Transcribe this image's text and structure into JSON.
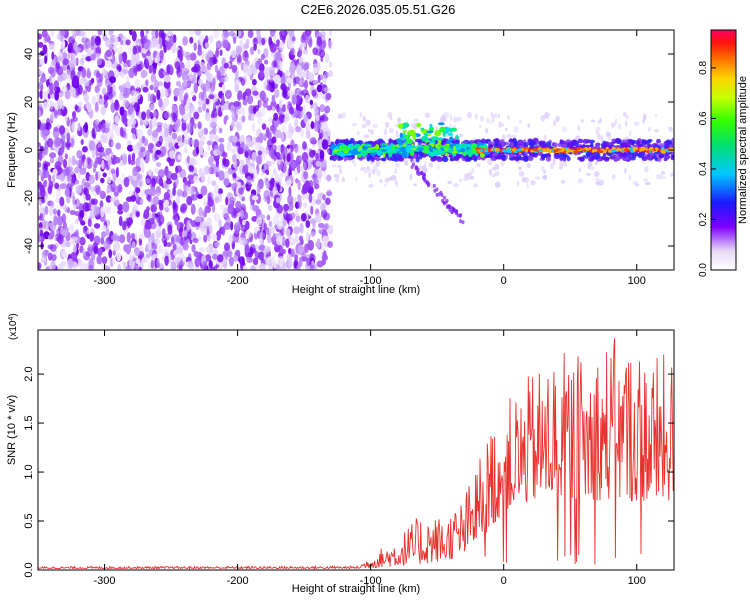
{
  "title": "C2E6.2026.035.05.51.G26",
  "chart_data": [
    {
      "type": "heatmap",
      "name": "spectrogram",
      "xlabel": "Height of straight line (km)",
      "ylabel": "Frequency (Hz)",
      "xlim": [
        -350,
        128
      ],
      "ylim": [
        -50,
        50
      ],
      "x_ticks": [
        -300,
        -200,
        -100,
        0,
        100
      ],
      "x_tick_labels": [
        "-300",
        "-200",
        "-100",
        "0",
        "100"
      ],
      "y_ticks": [
        -40,
        -20,
        0,
        20,
        40
      ],
      "y_tick_labels": [
        "-40",
        "-20",
        "0",
        "20",
        "40"
      ],
      "noise_region_km": [
        -350,
        -130
      ],
      "signal_band_hz": [
        -3,
        3
      ],
      "colorbar": {
        "label": "Normalized spectral amplitude",
        "range": [
          0.0,
          0.95
        ],
        "ticks": [
          0.0,
          0.2,
          0.4,
          0.6,
          0.8
        ],
        "tick_labels": [
          "0.0",
          "0.2",
          "0.4",
          "0.6",
          "0.8"
        ]
      }
    },
    {
      "type": "line",
      "name": "snr",
      "xlabel": "Height of straight line (km)",
      "ylabel": "SNR (10 * v/v)",
      "scale_label": "(x10",
      "scale_exp": "4",
      "scale_close": ")",
      "xlim": [
        -350,
        128
      ],
      "ylim": [
        0,
        24500
      ],
      "x_ticks": [
        -300,
        -200,
        -100,
        0,
        100
      ],
      "x_tick_labels": [
        "-300",
        "-200",
        "-100",
        "0",
        "100"
      ],
      "y_ticks": [
        0,
        5000,
        10000,
        15000,
        20000
      ],
      "y_tick_labels": [
        "0.0",
        "0.5",
        "1.0",
        "1.5",
        "2.0"
      ],
      "color": "#e8322e",
      "envelope": {
        "x": [
          -350,
          -110,
          -100,
          -80,
          -60,
          -45,
          -30,
          -15,
          -5,
          0,
          20,
          40,
          60,
          80,
          100,
          120,
          128
        ],
        "baseline": [
          150,
          150,
          200,
          400,
          600,
          900,
          1500,
          3500,
          5000,
          6000,
          7000,
          7500,
          7000,
          7200,
          7000,
          7000,
          7000
        ],
        "peak": [
          350,
          400,
          1500,
          3500,
          6000,
          5500,
          7500,
          13000,
          16500,
          17000,
          20000,
          22500,
          22000,
          24000,
          23000,
          22000,
          22000
        ]
      }
    }
  ]
}
